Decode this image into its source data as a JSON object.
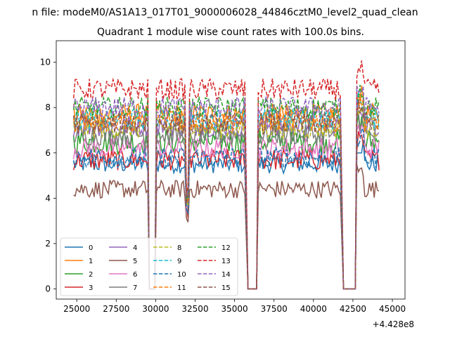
{
  "chart_data": {
    "type": "line",
    "suptitle": "n file: modeM0/AS1A13_017T01_9000006028_44846cztM0_level2_quad_clean",
    "title": "Quadrant 1 module wise count rates with 100.0s bins.",
    "xlabel": "",
    "ylabel": "",
    "x_offset_label": "+4.428e8",
    "xlim": [
      23700,
      45800
    ],
    "ylim": [
      -0.45,
      10.95
    ],
    "xticks": [
      "25000",
      "27500",
      "30000",
      "32500",
      "35000",
      "37500",
      "40000",
      "42500",
      "45000"
    ],
    "yticks": [
      "0",
      "2",
      "4",
      "6",
      "8",
      "10"
    ],
    "x_segments": [
      [
        24800,
        29500
      ],
      [
        30050,
        35700
      ],
      [
        36500,
        41700
      ],
      [
        42750,
        44150
      ]
    ],
    "gaps": [
      {
        "from": 29500,
        "to": 30050,
        "dip_at": [
          29600,
          29950
        ]
      },
      {
        "from": 35700,
        "to": 36500,
        "dip_at": [
          35850,
          36400
        ]
      },
      {
        "from": 41700,
        "to": 42750,
        "dip_at": [
          41900,
          42650
        ]
      }
    ],
    "extra_dip": {
      "x": 32000,
      "depth": 3.2
    },
    "series": [
      {
        "name": "0",
        "level": 5.5,
        "noise": 0.25,
        "color": "#1f77b4",
        "style": "solid"
      },
      {
        "name": "1",
        "level": 7.7,
        "noise": 0.3,
        "color": "#ff7f0e",
        "style": "solid"
      },
      {
        "name": "2",
        "level": 6.5,
        "noise": 0.35,
        "color": "#2ca02c",
        "style": "solid"
      },
      {
        "name": "3",
        "level": 5.7,
        "noise": 0.3,
        "color": "#d62728",
        "style": "solid"
      },
      {
        "name": "4",
        "level": 7.2,
        "noise": 0.3,
        "color": "#9467bd",
        "style": "solid"
      },
      {
        "name": "5",
        "level": 4.4,
        "noise": 0.25,
        "color": "#8c564b",
        "style": "solid"
      },
      {
        "name": "6",
        "level": 6.2,
        "noise": 0.3,
        "color": "#e377c2",
        "style": "solid"
      },
      {
        "name": "7",
        "level": 6.8,
        "noise": 0.3,
        "color": "#7f7f7f",
        "style": "solid"
      },
      {
        "name": "8",
        "level": 7.1,
        "noise": 0.3,
        "color": "#bcbd22",
        "style": "dashed"
      },
      {
        "name": "9",
        "level": 7.5,
        "noise": 0.3,
        "color": "#17becf",
        "style": "dashed"
      },
      {
        "name": "10",
        "level": 5.8,
        "noise": 0.3,
        "color": "#1f77b4",
        "style": "dashed"
      },
      {
        "name": "11",
        "level": 7.4,
        "noise": 0.3,
        "color": "#ff7f0e",
        "style": "dashed"
      },
      {
        "name": "12",
        "level": 8.0,
        "noise": 0.3,
        "color": "#2ca02c",
        "style": "dashed"
      },
      {
        "name": "13",
        "level": 8.8,
        "noise": 0.3,
        "color": "#d62728",
        "style": "dashed"
      },
      {
        "name": "14",
        "level": 8.0,
        "noise": 0.3,
        "color": "#9467bd",
        "style": "dashed"
      },
      {
        "name": "15",
        "level": 7.3,
        "noise": 0.3,
        "color": "#8c564b",
        "style": "dashed"
      }
    ],
    "legend_position": "lower-left"
  }
}
